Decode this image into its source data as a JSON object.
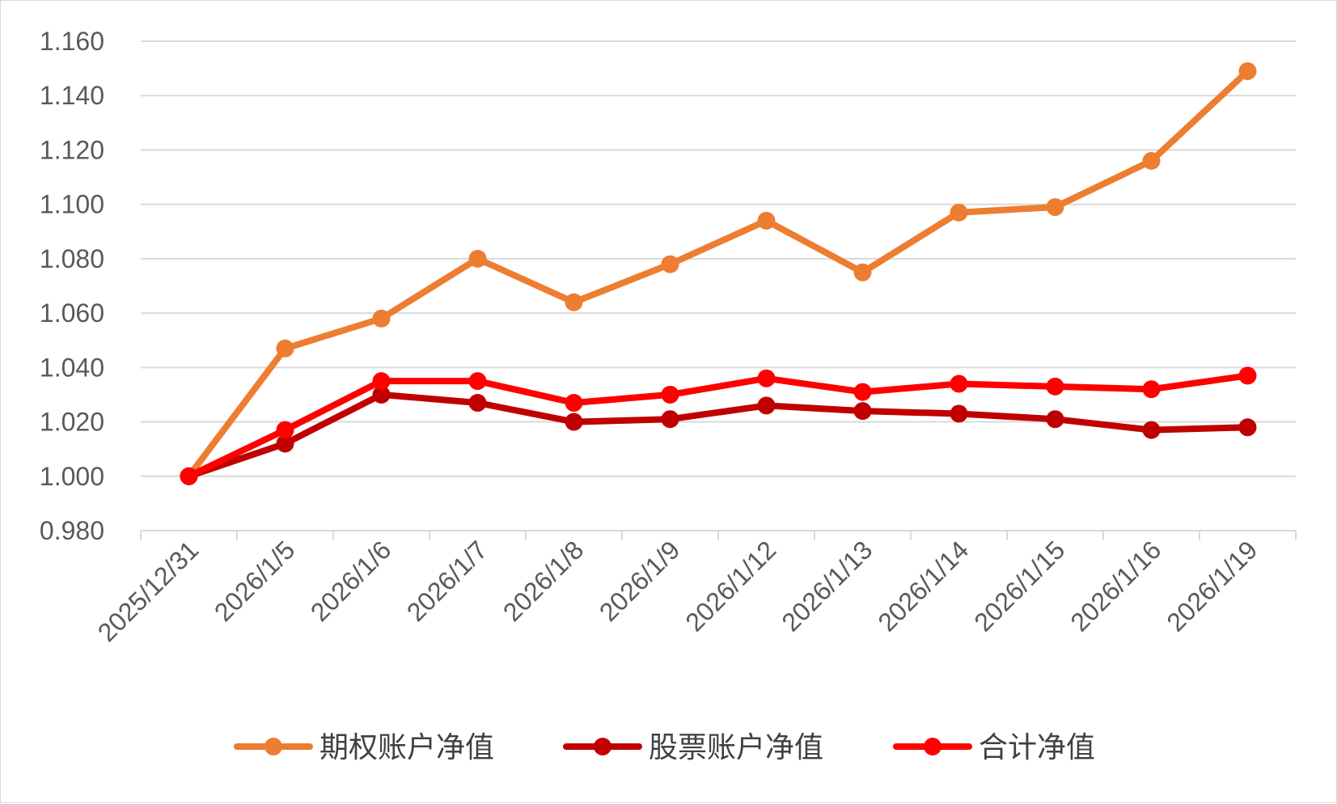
{
  "chart_data": {
    "type": "line",
    "title": "",
    "xlabel": "",
    "ylabel": "",
    "categories": [
      "2025/12/31",
      "2026/1/5",
      "2026/1/6",
      "2026/1/7",
      "2026/1/8",
      "2026/1/9",
      "2026/1/12",
      "2026/1/13",
      "2026/1/14",
      "2026/1/15",
      "2026/1/16",
      "2026/1/19"
    ],
    "ylim": [
      0.98,
      1.16
    ],
    "yticks": [
      "0.980",
      "1.000",
      "1.020",
      "1.040",
      "1.060",
      "1.080",
      "1.100",
      "1.120",
      "1.140",
      "1.160"
    ],
    "grid": true,
    "legend_position": "bottom",
    "series": [
      {
        "name": "期权账户净值",
        "color": "#ED7D31",
        "values": [
          1.0,
          1.047,
          1.058,
          1.08,
          1.064,
          1.078,
          1.094,
          1.075,
          1.097,
          1.099,
          1.116,
          1.149
        ]
      },
      {
        "name": "股票账户净值",
        "color": "#C00000",
        "values": [
          1.0,
          1.012,
          1.03,
          1.027,
          1.02,
          1.021,
          1.026,
          1.024,
          1.023,
          1.021,
          1.017,
          1.018
        ]
      },
      {
        "name": "合计净值",
        "color": "#FF0000",
        "values": [
          1.0,
          1.017,
          1.035,
          1.035,
          1.027,
          1.03,
          1.036,
          1.031,
          1.034,
          1.033,
          1.032,
          1.037
        ]
      }
    ]
  }
}
